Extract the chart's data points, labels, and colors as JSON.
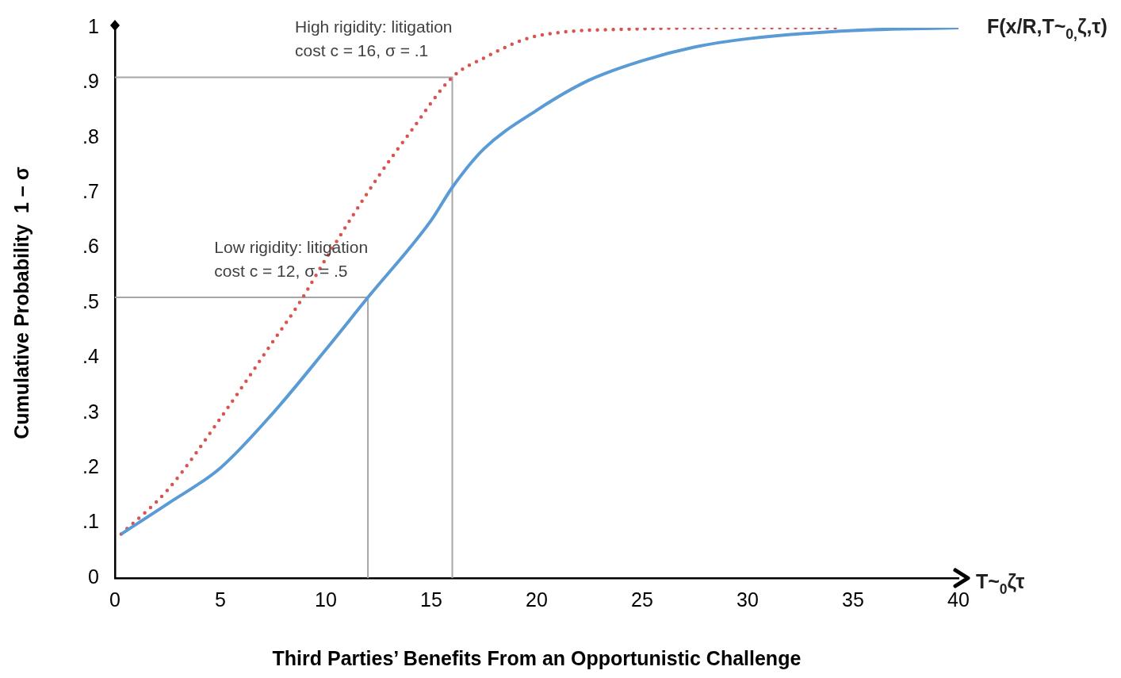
{
  "chart_data": {
    "type": "line",
    "xlabel": "Third Parties’ Benefits From an Opportunistic Challenge",
    "ylabel": "Cumulative Probability  1 – σ",
    "xlim": [
      0,
      40
    ],
    "xticks": [
      0,
      5,
      10,
      15,
      20,
      25,
      30,
      35,
      40
    ],
    "ylim": [
      0,
      1
    ],
    "yticks": [
      0,
      {
        "value": 0.1,
        "label": ".1"
      },
      {
        "value": 0.2,
        "label": ".2"
      },
      {
        "value": 0.3,
        "label": ".3"
      },
      {
        "value": 0.4,
        "label": ".4"
      },
      {
        "value": 0.5,
        "label": ".5"
      },
      {
        "value": 0.6,
        "label": ".6"
      },
      {
        "value": 0.7,
        "label": ".7"
      },
      {
        "value": 0.8,
        "label": ".8"
      },
      {
        "value": 0.9,
        "label": ".9"
      },
      1
    ],
    "grid": false,
    "legend": false,
    "marker": "none",
    "series": [
      {
        "name": "F(x/R,T~$_{0,}$ζ,τ)",
        "color": "#5b9bd5",
        "line_style": "solid",
        "x": [
          0.3,
          2.5,
          5,
          7.5,
          10,
          12,
          15,
          16,
          17.5,
          20,
          22.5,
          25,
          27.5,
          30,
          35,
          40
        ],
        "values": [
          0.08,
          0.135,
          0.2,
          0.3,
          0.415,
          0.51,
          0.65,
          0.71,
          0.78,
          0.85,
          0.905,
          0.94,
          0.965,
          0.98,
          0.995,
          1.0
        ]
      },
      {
        "color": "#d9534f",
        "line_style": "dotted",
        "x": [
          0.3,
          2.5,
          5,
          7.5,
          8.75,
          10,
          12.5,
          14,
          16,
          17.5,
          20,
          25,
          30,
          34.2
        ],
        "values": [
          0.08,
          0.16,
          0.29,
          0.43,
          0.5,
          0.58,
          0.73,
          0.81,
          0.91,
          0.945,
          0.985,
          0.998,
          1.0,
          1.0
        ]
      },
      {
        "color": "#a6a6a6",
        "line_style": "solid",
        "x": [
          0,
          12,
          12
        ],
        "values": [
          0.51,
          0.51,
          0
        ]
      },
      {
        "color": "#a6a6a6",
        "line_style": "solid",
        "x": [
          0,
          16,
          16
        ],
        "values": [
          0.91,
          0.91,
          0
        ]
      }
    ],
    "annotations": [
      {
        "text": "High rigidity: litigation\ncost c = 16, σ = .1",
        "x": 16,
        "y": 0.91
      },
      {
        "text": "Low rigidity: litigation\ncost c = 12, σ = .5",
        "x": 12,
        "y": 0.51
      },
      "T~$_{0}$ζτ"
    ]
  }
}
